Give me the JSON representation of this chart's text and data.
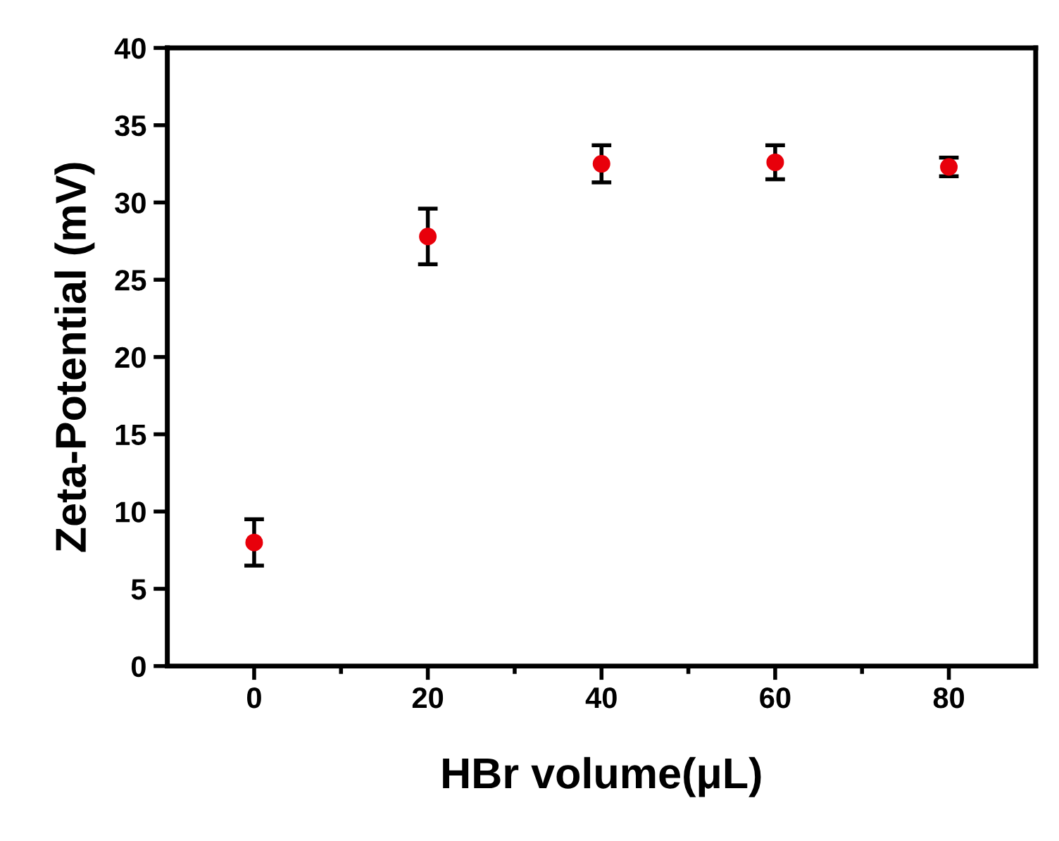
{
  "chart_data": {
    "type": "scatter",
    "xlabel": "HBr volume(μL)",
    "ylabel": "Zeta-Potential (mV)",
    "x": [
      0,
      20,
      40,
      60,
      80
    ],
    "series": [
      {
        "color": "#e8000b",
        "values": [
          8.0,
          27.8,
          32.5,
          32.6,
          32.3
        ],
        "errors": [
          1.5,
          1.8,
          1.2,
          1.1,
          0.6
        ]
      }
    ],
    "xlim": [
      -10,
      90
    ],
    "xticks": [
      0,
      20,
      40,
      60,
      80
    ],
    "ylim": [
      0,
      40
    ],
    "yticks": [
      0,
      5,
      10,
      15,
      20,
      25,
      30,
      35,
      40
    ],
    "marker": "circle",
    "grid": false,
    "legend": false
  }
}
